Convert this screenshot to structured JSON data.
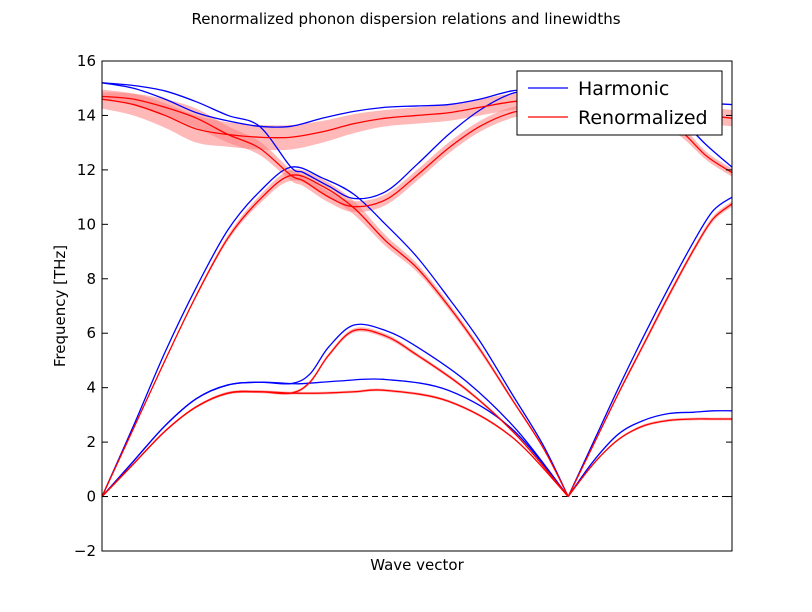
{
  "chart_data": {
    "type": "line",
    "title": "Renormalized phonon dispersion relations and linewidths",
    "xlabel": "Wave vector",
    "ylabel": "Frequency [THz]",
    "ylim": [
      -2,
      16
    ],
    "xlim": [
      0,
      1
    ],
    "yticks": [
      "−2",
      "0",
      "2",
      "4",
      "6",
      "8",
      "10",
      "12",
      "14",
      "16"
    ],
    "ytick_values": [
      -2,
      0,
      2,
      4,
      6,
      8,
      10,
      12,
      14,
      16
    ],
    "grid": false,
    "legend_position": "top-right",
    "reference_line": {
      "y": 0,
      "style": "dashed",
      "color": "#000000"
    },
    "series": [
      {
        "name": "Harmonic",
        "color": "#0000ff",
        "branches": [
          {
            "x": [
              0,
              0.05,
              0.1,
              0.15,
              0.2,
              0.25,
              0.3,
              0.32,
              0.38,
              0.45,
              0.55,
              0.65,
              0.74
            ],
            "y": [
              0,
              1.3,
              2.6,
              3.6,
              4.1,
              4.2,
              4.15,
              4.15,
              4.25,
              4.3,
              3.9,
              2.5,
              0
            ]
          },
          {
            "x": [
              0,
              0.05,
              0.1,
              0.15,
              0.2,
              0.25,
              0.3,
              0.33,
              0.36,
              0.4,
              0.45,
              0.5,
              0.58,
              0.66,
              0.74
            ],
            "y": [
              0,
              1.3,
              2.6,
              3.6,
              4.1,
              4.2,
              4.15,
              4.5,
              5.5,
              6.3,
              6.1,
              5.5,
              4.2,
              2.4,
              0
            ]
          },
          {
            "x": [
              0,
              0.05,
              0.1,
              0.15,
              0.2,
              0.25,
              0.3,
              0.35,
              0.4,
              0.45,
              0.5,
              0.55,
              0.6,
              0.65,
              0.7,
              0.74
            ],
            "y": [
              0,
              2.6,
              5.3,
              7.7,
              9.8,
              11.2,
              12.1,
              11.7,
              11.1,
              10.0,
              8.8,
              7.3,
              5.7,
              3.8,
              1.9,
              0
            ]
          },
          {
            "x": [
              0,
              0.05,
              0.1,
              0.15,
              0.2,
              0.25,
              0.3,
              0.32,
              0.36,
              0.4,
              0.45,
              0.5,
              0.55,
              0.6,
              0.65,
              0.7
            ],
            "y": [
              15.2,
              15.1,
              14.9,
              14.5,
              14.0,
              13.6,
              12.1,
              11.9,
              11.4,
              10.95,
              11.2,
              12.2,
              13.3,
              14.2,
              14.8,
              15.0
            ]
          },
          {
            "x": [
              0,
              0.05,
              0.1,
              0.15,
              0.2,
              0.25,
              0.3,
              0.35,
              0.4,
              0.45,
              0.5,
              0.55,
              0.6,
              0.65,
              0.7
            ],
            "y": [
              15.2,
              15.0,
              14.6,
              14.1,
              13.8,
              13.6,
              13.6,
              13.9,
              14.15,
              14.3,
              14.35,
              14.4,
              14.6,
              14.9,
              15.0
            ]
          },
          {
            "x": [
              0.74,
              0.78,
              0.82,
              0.86,
              0.9,
              0.94,
              0.97,
              1.0
            ],
            "y": [
              0,
              1.3,
              2.3,
              2.8,
              3.05,
              3.1,
              3.15,
              3.15
            ]
          },
          {
            "x": [
              0.74,
              0.78,
              0.82,
              0.86,
              0.9,
              0.94,
              0.97,
              1.0
            ],
            "y": [
              0,
              2.0,
              4.0,
              5.9,
              7.7,
              9.4,
              10.5,
              11.0
            ]
          },
          {
            "x": [
              0.84,
              0.88,
              0.92,
              0.96,
              1.0
            ],
            "y": [
              14.5,
              14.3,
              13.8,
              12.9,
              12.1
            ]
          },
          {
            "x": [
              0.84,
              0.88,
              0.92,
              0.96,
              1.0
            ],
            "y": [
              14.7,
              14.6,
              14.5,
              14.45,
              14.4
            ]
          }
        ]
      },
      {
        "name": "Renormalized",
        "color": "#ff0000",
        "band_color": "#ff8080",
        "branches": [
          {
            "x": [
              0,
              0.05,
              0.1,
              0.15,
              0.2,
              0.25,
              0.3,
              0.35,
              0.4,
              0.45,
              0.55,
              0.65,
              0.74
            ],
            "y": [
              0,
              1.2,
              2.4,
              3.3,
              3.8,
              3.85,
              3.8,
              3.8,
              3.85,
              3.9,
              3.5,
              2.2,
              0
            ],
            "width": [
              0,
              0.02,
              0.03,
              0.04,
              0.05,
              0.05,
              0.05,
              0.05,
              0.05,
              0.05,
              0.05,
              0.04,
              0
            ]
          },
          {
            "x": [
              0,
              0.05,
              0.1,
              0.15,
              0.2,
              0.25,
              0.3,
              0.33,
              0.36,
              0.4,
              0.45,
              0.5,
              0.58,
              0.66,
              0.74
            ],
            "y": [
              0,
              1.2,
              2.4,
              3.3,
              3.8,
              3.85,
              3.8,
              4.2,
              5.2,
              6.1,
              5.9,
              5.2,
              3.9,
              2.2,
              0
            ],
            "width": [
              0,
              0.02,
              0.03,
              0.04,
              0.05,
              0.05,
              0.05,
              0.06,
              0.07,
              0.08,
              0.08,
              0.07,
              0.06,
              0.04,
              0
            ]
          },
          {
            "x": [
              0,
              0.05,
              0.1,
              0.15,
              0.2,
              0.25,
              0.3,
              0.35,
              0.4,
              0.45,
              0.5,
              0.55,
              0.6,
              0.65,
              0.7,
              0.74
            ],
            "y": [
              0,
              2.5,
              5.0,
              7.4,
              9.5,
              10.9,
              11.8,
              11.4,
              10.6,
              9.4,
              8.4,
              7.0,
              5.4,
              3.6,
              1.8,
              0
            ],
            "width": [
              0,
              0.03,
              0.05,
              0.07,
              0.1,
              0.15,
              0.2,
              0.25,
              0.25,
              0.2,
              0.15,
              0.12,
              0.1,
              0.07,
              0.04,
              0
            ]
          },
          {
            "x": [
              0,
              0.05,
              0.1,
              0.15,
              0.2,
              0.25,
              0.3,
              0.32,
              0.36,
              0.4,
              0.45,
              0.5,
              0.55,
              0.6,
              0.65,
              0.7
            ],
            "y": [
              14.7,
              14.6,
              14.3,
              13.9,
              13.3,
              12.8,
              11.8,
              11.6,
              11.0,
              10.65,
              10.9,
              11.8,
              12.8,
              13.6,
              14.1,
              14.3
            ],
            "width": [
              0.15,
              0.2,
              0.3,
              0.35,
              0.3,
              0.25,
              0.2,
              0.2,
              0.2,
              0.2,
              0.2,
              0.2,
              0.2,
              0.2,
              0.2,
              0.2
            ]
          },
          {
            "x": [
              0,
              0.05,
              0.1,
              0.15,
              0.2,
              0.25,
              0.3,
              0.35,
              0.4,
              0.45,
              0.5,
              0.55,
              0.6,
              0.65,
              0.7
            ],
            "y": [
              14.6,
              14.4,
              14.0,
              13.5,
              13.3,
              13.2,
              13.2,
              13.4,
              13.7,
              13.9,
              14.0,
              14.1,
              14.3,
              14.5,
              14.6
            ],
            "width": [
              0.35,
              0.4,
              0.45,
              0.5,
              0.45,
              0.45,
              0.45,
              0.4,
              0.35,
              0.3,
              0.3,
              0.3,
              0.3,
              0.3,
              0.3
            ]
          },
          {
            "x": [
              0.74,
              0.78,
              0.82,
              0.86,
              0.9,
              0.94,
              0.97,
              1.0
            ],
            "y": [
              0,
              1.2,
              2.1,
              2.6,
              2.8,
              2.85,
              2.85,
              2.85
            ],
            "width": [
              0,
              0.03,
              0.04,
              0.05,
              0.05,
              0.05,
              0.05,
              0.05
            ]
          },
          {
            "x": [
              0.74,
              0.78,
              0.82,
              0.86,
              0.9,
              0.94,
              0.97,
              1.0
            ],
            "y": [
              0,
              1.9,
              3.8,
              5.6,
              7.4,
              9.1,
              10.2,
              10.75
            ],
            "width": [
              0,
              0.05,
              0.07,
              0.09,
              0.1,
              0.1,
              0.1,
              0.1
            ]
          },
          {
            "x": [
              0.84,
              0.88,
              0.92,
              0.96,
              1.0
            ],
            "y": [
              14.2,
              13.9,
              13.4,
              12.5,
              11.9
            ],
            "width": [
              0.25,
              0.2,
              0.2,
              0.15,
              0.15
            ]
          },
          {
            "x": [
              0.84,
              0.88,
              0.92,
              0.96,
              1.0
            ],
            "y": [
              14.3,
              14.2,
              14.1,
              14.0,
              13.9
            ],
            "width": [
              0.3,
              0.3,
              0.3,
              0.3,
              0.3
            ]
          }
        ]
      }
    ]
  }
}
